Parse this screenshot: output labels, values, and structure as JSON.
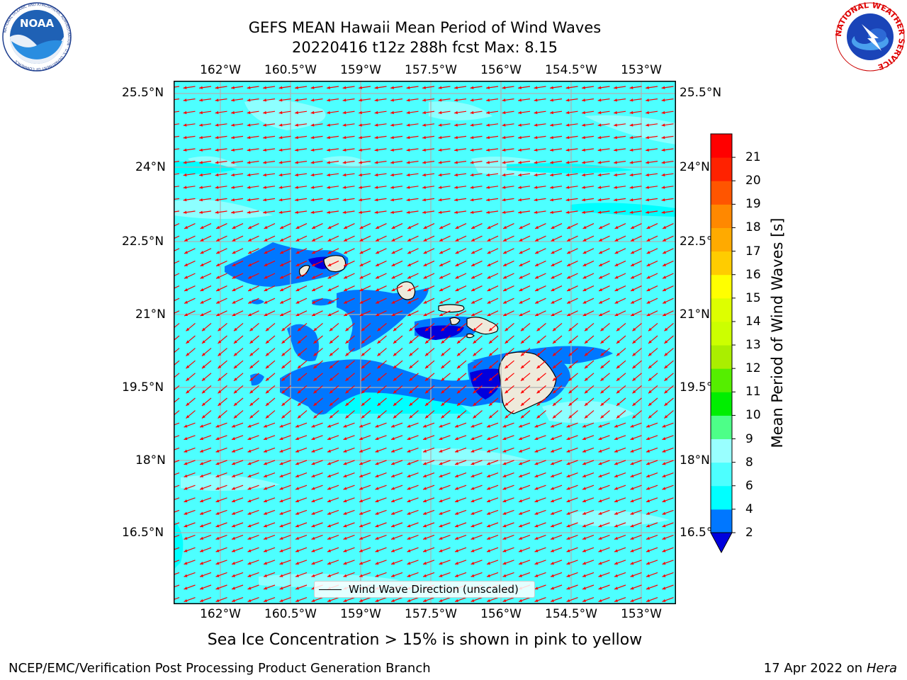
{
  "title": {
    "line1": "GEFS MEAN Hawaii Mean Period of Wind Waves",
    "line2": "20220416 t12z 288h fcst   Max: 8.15"
  },
  "map": {
    "projection": "plate carree",
    "lon_ticks": [
      "162°W",
      "160.5°W",
      "159°W",
      "157.5°W",
      "156°W",
      "154.5°W",
      "153°W"
    ],
    "lat_ticks": [
      "25.5°N",
      "24°N",
      "22.5°N",
      "21°N",
      "19.5°N",
      "18°N",
      "16.5°N"
    ],
    "lon_range_deg": [
      -163.0,
      -152.2
    ],
    "lat_range_deg": [
      15.0,
      25.7
    ],
    "background_fill": "#4dffff",
    "land_color": "#eeeadb",
    "arrow_color": "#ff0000",
    "wind_direction": "toward southwest",
    "islands": [
      "Niihau",
      "Kauai",
      "Oahu",
      "Molokai",
      "Lanai",
      "Maui",
      "Kahoolawe",
      "Hawaii"
    ]
  },
  "legend": {
    "label": "Wind Wave Direction (unscaled)"
  },
  "colorbar": {
    "label": "Mean Period of Wind Waves [s]",
    "ticks": [
      "2",
      "4",
      "6",
      "8",
      "9",
      "10",
      "11",
      "12",
      "13",
      "14",
      "15",
      "16",
      "17",
      "18",
      "19",
      "20",
      "21"
    ],
    "bins": [
      {
        "from": 2,
        "to": 4,
        "color": "#0077ff"
      },
      {
        "from": 4,
        "to": 6,
        "color": "#00ffff"
      },
      {
        "from": 6,
        "to": 8,
        "color": "#4dffff"
      },
      {
        "from": 8,
        "to": 9,
        "color": "#99ffff"
      },
      {
        "from": 9,
        "to": 10,
        "color": "#4dff88"
      },
      {
        "from": 10,
        "to": 11,
        "color": "#00ee00"
      },
      {
        "from": 11,
        "to": 12,
        "color": "#55ee00"
      },
      {
        "from": 12,
        "to": 13,
        "color": "#aaee00"
      },
      {
        "from": 13,
        "to": 14,
        "color": "#ccff00"
      },
      {
        "from": 14,
        "to": 15,
        "color": "#ddff00"
      },
      {
        "from": 15,
        "to": 16,
        "color": "#ffff00"
      },
      {
        "from": 16,
        "to": 17,
        "color": "#ffcc00"
      },
      {
        "from": 17,
        "to": 18,
        "color": "#ffaa00"
      },
      {
        "from": 18,
        "to": 19,
        "color": "#ff8800"
      },
      {
        "from": 19,
        "to": 20,
        "color": "#ff5500"
      },
      {
        "from": 20,
        "to": 21,
        "color": "#ff2200"
      },
      {
        "from": 21,
        "to": 22,
        "color": "#ff0000"
      }
    ],
    "under_color": "#0000dd",
    "extend": "min"
  },
  "note": "Sea Ice Concentration > 15% is shown in pink to yellow",
  "footer": {
    "left": "NCEP/EMC/Verification Post Processing Product Generation Branch",
    "right_text": "17 Apr 2022 on ",
    "right_machine": "Hera"
  },
  "logos": {
    "noaa": {
      "text": "NOAA",
      "ring_text": "NATIONAL OCEANIC AND ATMOSPHERIC ADMINISTRATION · U.S. DEPARTMENT OF COMMERCE"
    },
    "nws": {
      "ring_text": "NATIONAL WEATHER SERVICE"
    }
  }
}
